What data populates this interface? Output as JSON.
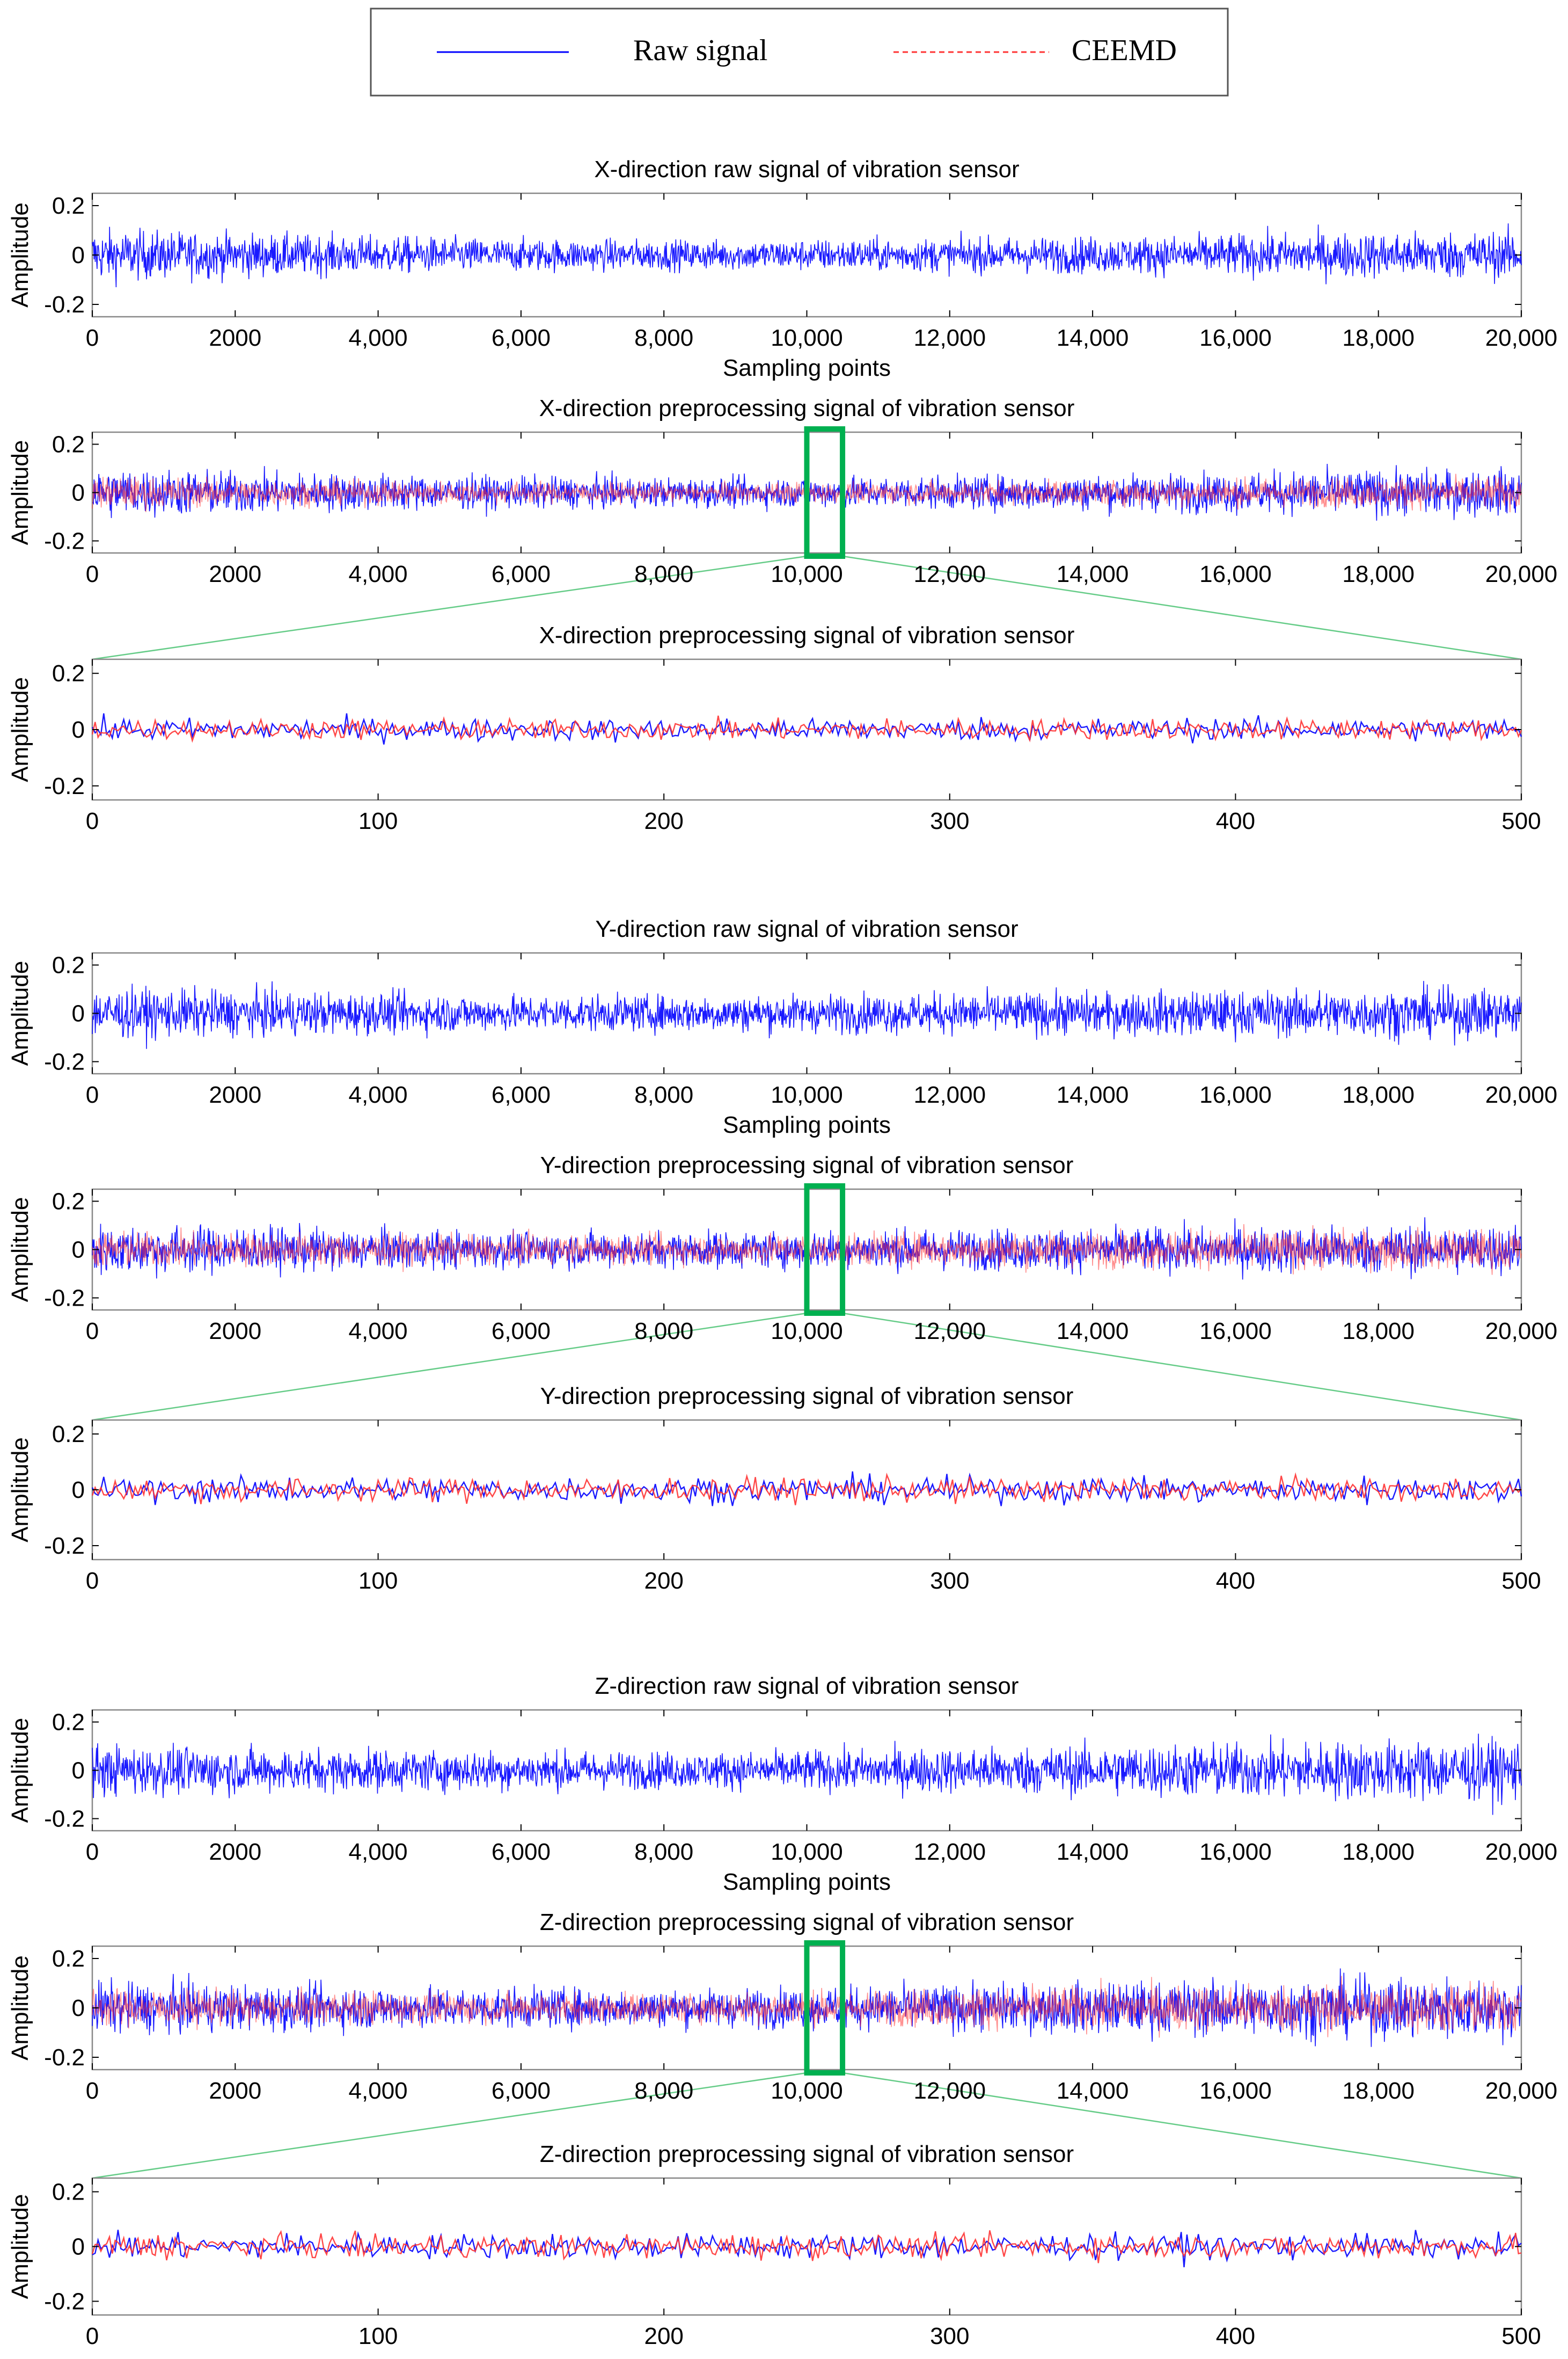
{
  "legend": {
    "raw_label": "Raw signal",
    "ceemd_label": "CEEMD",
    "raw_color": "#0000ff",
    "ceemd_color": "#ff3333"
  },
  "colors": {
    "zoom_box": "#00b050",
    "zoom_line": "#66cc88",
    "axis": "#000000",
    "frame": "#808080"
  },
  "chart_data": [
    {
      "id": "x-raw",
      "type": "line",
      "title": "X-direction raw signal of vibration sensor",
      "ylabel": "Amplitude",
      "xlabel": "Sampling points",
      "xlim": [
        0,
        20000
      ],
      "ylim": [
        -0.25,
        0.25
      ],
      "xticks": [
        0,
        2000,
        4000,
        6000,
        8000,
        10000,
        12000,
        14000,
        16000,
        18000,
        20000
      ],
      "xtick_labels": [
        "0",
        "2000",
        "4,000",
        "6,000",
        "8,000",
        "10,000",
        "12,000",
        "14,000",
        "16,000",
        "18,000",
        "20,000"
      ],
      "yticks": [
        0.2,
        0,
        -0.2
      ],
      "ytick_labels": [
        "0.2",
        "0",
        "-0.2"
      ],
      "series": [
        {
          "name": "Raw signal",
          "color": "#0000ff",
          "amplitude_envelope": [
            0.14,
            0.11,
            0.09,
            0.08,
            0.09,
            0.1,
            0.12,
            0.13
          ]
        }
      ]
    },
    {
      "id": "x-pre",
      "type": "line",
      "title": "X-direction preprocessing signal of vibration sensor",
      "ylabel": "Amplitude",
      "xlabel": "",
      "xlim": [
        0,
        20000
      ],
      "ylim": [
        -0.25,
        0.25
      ],
      "xticks": [
        0,
        2000,
        4000,
        6000,
        8000,
        10000,
        12000,
        14000,
        16000,
        18000,
        20000
      ],
      "xtick_labels": [
        "0",
        "2000",
        "4,000",
        "6,000",
        "8,000",
        "10,000",
        "12,000",
        "14,000",
        "16,000",
        "18,000",
        "20,000"
      ],
      "yticks": [
        0.2,
        0,
        -0.2
      ],
      "ytick_labels": [
        "0.2",
        "0",
        "-0.2"
      ],
      "zoom_range": [
        10000,
        10500
      ],
      "series": [
        {
          "name": "Raw signal",
          "color": "#0000ff",
          "amplitude_envelope": [
            0.14,
            0.11,
            0.09,
            0.08,
            0.09,
            0.1,
            0.12,
            0.13
          ]
        },
        {
          "name": "CEEMD",
          "color": "#ff3333",
          "amplitude_envelope": [
            0.09,
            0.07,
            0.06,
            0.05,
            0.06,
            0.07,
            0.08,
            0.09
          ]
        }
      ]
    },
    {
      "id": "x-zoom",
      "type": "line",
      "title": "X-direction preprocessing signal of vibration sensor",
      "ylabel": "Amplitude",
      "xlabel": "",
      "xlim": [
        0,
        500
      ],
      "ylim": [
        -0.25,
        0.25
      ],
      "xticks": [
        0,
        100,
        200,
        300,
        400,
        500
      ],
      "xtick_labels": [
        "0",
        "100",
        "200",
        "300",
        "400",
        "500"
      ],
      "yticks": [
        0.2,
        0,
        -0.2
      ],
      "ytick_labels": [
        "0.2",
        "0",
        "-0.2"
      ],
      "series": [
        {
          "name": "Raw signal",
          "color": "#0000ff",
          "amplitude_envelope": [
            0.07,
            0.07,
            0.07,
            0.07
          ]
        },
        {
          "name": "CEEMD",
          "color": "#ff3333",
          "amplitude_envelope": [
            0.065,
            0.065,
            0.065,
            0.065
          ]
        }
      ]
    },
    {
      "id": "y-raw",
      "type": "line",
      "title": "Y-direction raw signal of vibration sensor",
      "ylabel": "Amplitude",
      "xlabel": "Sampling points",
      "xlim": [
        0,
        20000
      ],
      "ylim": [
        -0.25,
        0.25
      ],
      "xticks": [
        0,
        2000,
        4000,
        6000,
        8000,
        10000,
        12000,
        14000,
        16000,
        18000,
        20000
      ],
      "xtick_labels": [
        "0",
        "2000",
        "4,000",
        "6,000",
        "8,000",
        "10,000",
        "12,000",
        "14,000",
        "16,000",
        "18,000",
        "20,000"
      ],
      "yticks": [
        0.2,
        0,
        -0.2
      ],
      "ytick_labels": [
        "0.2",
        "0",
        "-0.2"
      ],
      "series": [
        {
          "name": "Raw signal",
          "color": "#0000ff",
          "amplitude_envelope": [
            0.14,
            0.12,
            0.1,
            0.1,
            0.11,
            0.12,
            0.13,
            0.14
          ]
        }
      ]
    },
    {
      "id": "y-pre",
      "type": "line",
      "title": "Y-direction preprocessing signal of vibration sensor",
      "ylabel": "Amplitude",
      "xlabel": "",
      "xlim": [
        0,
        20000
      ],
      "ylim": [
        -0.25,
        0.25
      ],
      "xticks": [
        0,
        2000,
        4000,
        6000,
        8000,
        10000,
        12000,
        14000,
        16000,
        18000,
        20000
      ],
      "xtick_labels": [
        "0",
        "2000",
        "4,000",
        "6,000",
        "8,000",
        "10,000",
        "12,000",
        "14,000",
        "16,000",
        "18,000",
        "20,000"
      ],
      "yticks": [
        0.2,
        0,
        -0.2
      ],
      "ytick_labels": [
        "0.2",
        "0",
        "-0.2"
      ],
      "zoom_range": [
        10000,
        10500
      ],
      "series": [
        {
          "name": "Raw signal",
          "color": "#0000ff",
          "amplitude_envelope": [
            0.14,
            0.12,
            0.1,
            0.1,
            0.11,
            0.12,
            0.13,
            0.14
          ]
        },
        {
          "name": "CEEMD",
          "color": "#ff3333",
          "amplitude_envelope": [
            0.1,
            0.09,
            0.08,
            0.08,
            0.09,
            0.1,
            0.11,
            0.11
          ]
        }
      ]
    },
    {
      "id": "y-zoom",
      "type": "line",
      "title": "Y-direction preprocessing signal of vibration sensor",
      "ylabel": "Amplitude",
      "xlabel": "",
      "xlim": [
        0,
        500
      ],
      "ylim": [
        -0.25,
        0.25
      ],
      "xticks": [
        0,
        100,
        200,
        300,
        400,
        500
      ],
      "xtick_labels": [
        "0",
        "100",
        "200",
        "300",
        "400",
        "500"
      ],
      "yticks": [
        0.2,
        0,
        -0.2
      ],
      "ytick_labels": [
        "0.2",
        "0",
        "-0.2"
      ],
      "series": [
        {
          "name": "Raw signal",
          "color": "#0000ff",
          "amplitude_envelope": [
            0.08,
            0.08,
            0.08,
            0.08
          ]
        },
        {
          "name": "CEEMD",
          "color": "#ff3333",
          "amplitude_envelope": [
            0.075,
            0.075,
            0.075,
            0.075
          ]
        }
      ]
    },
    {
      "id": "z-raw",
      "type": "line",
      "title": "Z-direction raw signal of vibration sensor",
      "ylabel": "Amplitude",
      "xlabel": "Sampling points",
      "xlim": [
        0,
        20000
      ],
      "ylim": [
        -0.25,
        0.25
      ],
      "xticks": [
        0,
        2000,
        4000,
        6000,
        8000,
        10000,
        12000,
        14000,
        16000,
        18000,
        20000
      ],
      "xtick_labels": [
        "0",
        "2000",
        "4,000",
        "6,000",
        "8,000",
        "10,000",
        "12,000",
        "14,000",
        "16,000",
        "18,000",
        "20,000"
      ],
      "yticks": [
        0.2,
        0,
        -0.2
      ],
      "ytick_labels": [
        "0.2",
        "0",
        "-0.2"
      ],
      "series": [
        {
          "name": "Raw signal",
          "color": "#0000ff",
          "amplitude_envelope": [
            0.14,
            0.12,
            0.11,
            0.1,
            0.12,
            0.14,
            0.16,
            0.17
          ]
        }
      ]
    },
    {
      "id": "z-pre",
      "type": "line",
      "title": "Z-direction preprocessing signal of vibration sensor",
      "ylabel": "Amplitude",
      "xlabel": "",
      "xlim": [
        0,
        20000
      ],
      "ylim": [
        -0.25,
        0.25
      ],
      "xticks": [
        0,
        2000,
        4000,
        6000,
        8000,
        10000,
        12000,
        14000,
        16000,
        18000,
        20000
      ],
      "xtick_labels": [
        "0",
        "2000",
        "4,000",
        "6,000",
        "8,000",
        "10,000",
        "12,000",
        "14,000",
        "16,000",
        "18,000",
        "20,000"
      ],
      "yticks": [
        0.2,
        0,
        -0.2
      ],
      "ytick_labels": [
        "0.2",
        "0",
        "-0.2"
      ],
      "zoom_range": [
        10000,
        10500
      ],
      "series": [
        {
          "name": "Raw signal",
          "color": "#0000ff",
          "amplitude_envelope": [
            0.14,
            0.12,
            0.11,
            0.1,
            0.12,
            0.14,
            0.16,
            0.17
          ]
        },
        {
          "name": "CEEMD",
          "color": "#ff3333",
          "amplitude_envelope": [
            0.1,
            0.09,
            0.08,
            0.08,
            0.1,
            0.12,
            0.13,
            0.14
          ]
        }
      ]
    },
    {
      "id": "z-zoom",
      "type": "line",
      "title": "Z-direction preprocessing signal of vibration sensor",
      "ylabel": "Amplitude",
      "xlabel": "",
      "xlim": [
        0,
        500
      ],
      "ylim": [
        -0.25,
        0.25
      ],
      "xticks": [
        0,
        100,
        200,
        300,
        400,
        500
      ],
      "xtick_labels": [
        "0",
        "100",
        "200",
        "300",
        "400",
        "500"
      ],
      "yticks": [
        0.2,
        0,
        -0.2
      ],
      "ytick_labels": [
        "0.2",
        "0",
        "-0.2"
      ],
      "series": [
        {
          "name": "Raw signal",
          "color": "#0000ff",
          "amplitude_envelope": [
            0.08,
            0.08,
            0.08,
            0.08
          ]
        },
        {
          "name": "CEEMD",
          "color": "#ff3333",
          "amplitude_envelope": [
            0.075,
            0.075,
            0.075,
            0.075
          ]
        }
      ]
    }
  ]
}
